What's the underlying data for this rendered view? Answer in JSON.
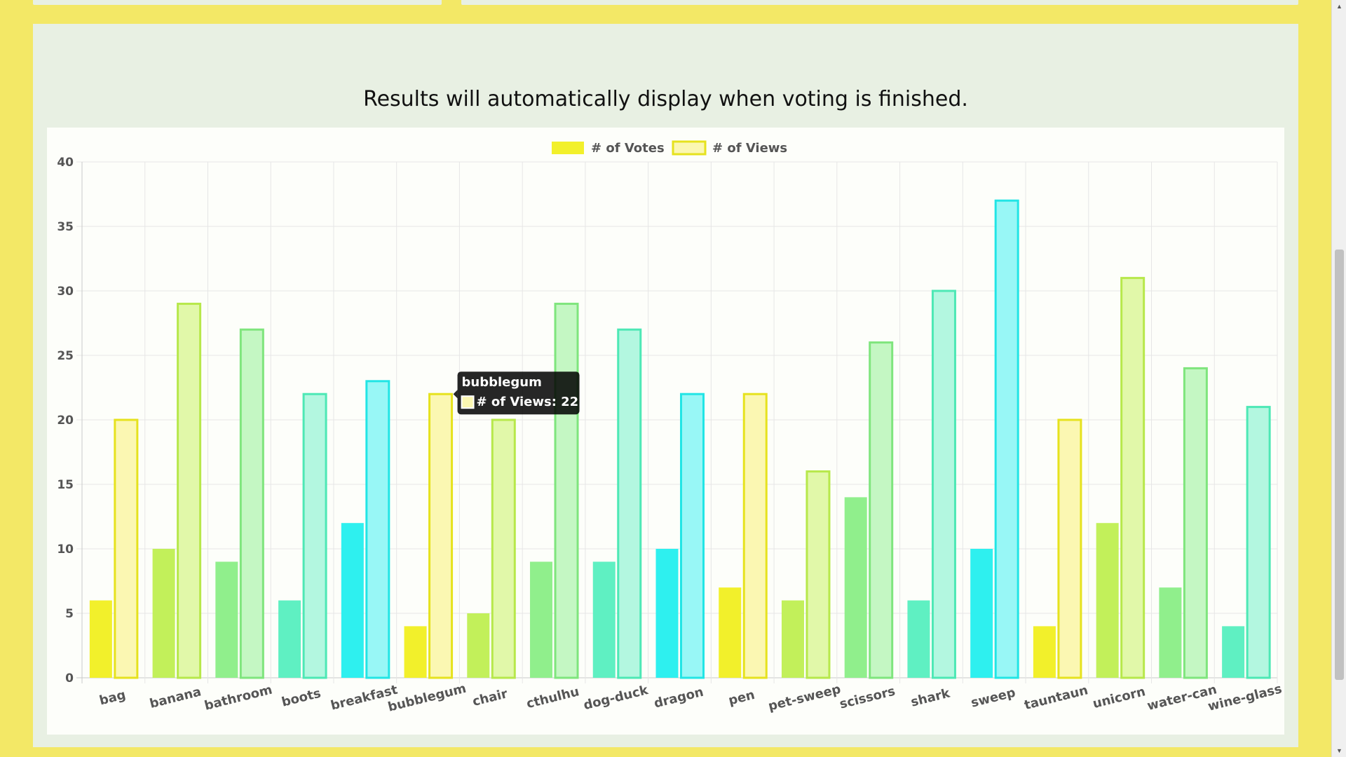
{
  "message": "Results will automatically display when voting is finished.",
  "colors": {
    "page_background": "#f3e866",
    "panel_background": "#e8f0e3",
    "chart_background": "#fdfefa",
    "palette_fill": [
      "#f2f02b",
      "#c2f05a",
      "#90ef8c",
      "#5ff0c2",
      "#2ef0ef"
    ],
    "palette_views_fill": [
      "#fbf7b2",
      "#e1f8a9",
      "#c4f7c3",
      "#b3f7e0",
      "#98f7f6"
    ],
    "palette_border": [
      "#e6e21e",
      "#b7e84b",
      "#7fe57d",
      "#4de8b5",
      "#22e5e5"
    ]
  },
  "chart_data": {
    "type": "bar",
    "categories": [
      "bag",
      "banana",
      "bathroom",
      "boots",
      "breakfast",
      "bubblegum",
      "chair",
      "cthulhu",
      "dog-duck",
      "dragon",
      "pen",
      "pet-sweep",
      "scissors",
      "shark",
      "sweep",
      "tauntaun",
      "unicorn",
      "water-can",
      "wine-glass"
    ],
    "series": [
      {
        "name": "# of Votes",
        "values": [
          6,
          10,
          9,
          6,
          12,
          4,
          5,
          9,
          9,
          10,
          7,
          6,
          14,
          6,
          10,
          4,
          12,
          7,
          4
        ]
      },
      {
        "name": "# of Views",
        "values": [
          20,
          29,
          27,
          22,
          23,
          22,
          20,
          29,
          27,
          22,
          22,
          16,
          26,
          30,
          37,
          20,
          31,
          24,
          21
        ]
      }
    ],
    "ylim": [
      0,
      40
    ],
    "yticks": [
      0,
      5,
      10,
      15,
      20,
      25,
      30,
      35,
      40
    ],
    "legend": "top-center",
    "grid": true,
    "tooltip": {
      "title": "bubblegum",
      "label": "# of Views: 22"
    }
  },
  "scrollbar": {
    "up_icon": "▲",
    "down_icon": "▼"
  }
}
